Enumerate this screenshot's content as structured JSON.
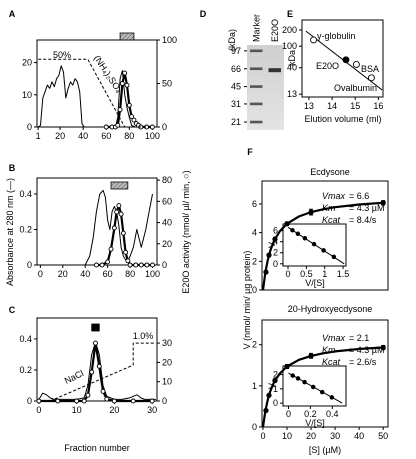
{
  "chart_data": [
    {
      "type": "line",
      "panel": "A",
      "xlim": [
        0,
        104
      ],
      "xticks": [
        1,
        20,
        40,
        60,
        80,
        100
      ],
      "ylim": [
        0,
        27
      ],
      "yticks": [
        0,
        10,
        20
      ],
      "y2lim": [
        0,
        100
      ],
      "y2ticks": [
        0,
        50,
        100
      ],
      "series": [
        {
          "x": [
            1,
            3,
            5,
            7,
            9,
            11,
            13,
            15,
            17,
            19,
            21,
            23,
            25,
            27,
            29,
            31,
            33,
            35,
            37,
            39,
            41,
            43,
            45,
            50,
            55,
            60,
            65,
            68,
            70,
            72,
            74,
            76,
            78,
            80,
            82,
            85,
            90,
            95,
            100
          ],
          "values": [
            0,
            0.5,
            9,
            11,
            13,
            12,
            14,
            12.5,
            15,
            16,
            19,
            17,
            9,
            12,
            14,
            13,
            15,
            14,
            11,
            1,
            0,
            0,
            0,
            0,
            0,
            0,
            0,
            0,
            3,
            15,
            17.5,
            10,
            6,
            3,
            0.5,
            0,
            0,
            0,
            0
          ],
          "color": "#000",
          "line_width": 1
        },
        {
          "x": [
            60,
            65,
            68,
            70,
            72,
            74,
            76,
            78,
            80,
            82,
            84,
            86,
            88,
            90,
            95,
            100
          ],
          "values": [
            0,
            0,
            0,
            2,
            20,
            50,
            62,
            48,
            25,
            12,
            8,
            4,
            2,
            0,
            0,
            0
          ],
          "color": "#000",
          "line_width": 2.2,
          "marker": "open-circle",
          "axis": "y2"
        },
        {
          "name": "(NH₄)₂SO₄",
          "x": [
            1,
            44,
            76,
            100
          ],
          "values": [
            21,
            21,
            0,
            0
          ],
          "color": "#000",
          "line_width": 1,
          "dash": true
        }
      ],
      "pool": [
        72,
        84
      ],
      "pool_fill": "hatch",
      "annotations": [
        "50%"
      ]
    },
    {
      "type": "line",
      "panel": "B",
      "xlim": [
        -3,
        104
      ],
      "xticks": [
        0,
        20,
        40,
        60,
        80,
        100
      ],
      "ylim": [
        0,
        0.49
      ],
      "yticks": [
        0,
        0.2,
        0.4
      ],
      "y2lim": [
        0,
        82
      ],
      "y2ticks": [
        0,
        20,
        40,
        60,
        80
      ],
      "ylabel": "Absorbance at 280 nm (—)",
      "y2label": "E20O activity (nmol/ µl/ min, ○)",
      "series": [
        {
          "x": [
            0,
            10,
            20,
            30,
            40,
            44,
            47,
            50,
            53,
            56,
            58,
            60,
            62,
            64,
            66,
            68,
            70,
            72,
            74,
            76,
            78,
            80,
            83,
            86,
            90,
            94,
            97,
            100
          ],
          "values": [
            0,
            0,
            0,
            0,
            0,
            0.05,
            0.15,
            0.3,
            0.4,
            0.42,
            0.38,
            0.25,
            0.2,
            0.3,
            0.33,
            0.3,
            0.22,
            0.1,
            0.05,
            0.03,
            0.02,
            0.05,
            0.1,
            0.2,
            0.1,
            0.2,
            0.3,
            0.4
          ],
          "color": "#000",
          "line_width": 1
        },
        {
          "x": [
            50,
            55,
            60,
            63,
            66,
            68,
            70,
            72,
            74,
            76,
            78,
            80,
            85,
            90,
            95,
            100
          ],
          "values": [
            0,
            0,
            3,
            15,
            35,
            50,
            56,
            48,
            30,
            12,
            4,
            0,
            0,
            0,
            0,
            0
          ],
          "color": "#000",
          "line_width": 2.2,
          "marker": "open-circle",
          "axis": "y2"
        }
      ],
      "pool": [
        63,
        78
      ],
      "pool_fill": "hatch"
    },
    {
      "type": "line",
      "panel": "C",
      "xlim": [
        -0.5,
        31.3
      ],
      "xticks": [
        0,
        10,
        20,
        30
      ],
      "ylim": [
        0,
        0.535
      ],
      "yticks": [
        0,
        0.2,
        0.4
      ],
      "y2lim": [
        0,
        43
      ],
      "y2ticks": [
        0,
        10,
        20,
        30
      ],
      "xlabel": "Fraction number",
      "series": [
        {
          "x": [
            0,
            1,
            2,
            3,
            4,
            6,
            8,
            10,
            12,
            13,
            14,
            15,
            16,
            17,
            18,
            20,
            22,
            24,
            25,
            26,
            27,
            28,
            30,
            31
          ],
          "values": [
            0.01,
            0.05,
            0.04,
            0.02,
            0.01,
            0.01,
            0.01,
            0.01,
            0.02,
            0.1,
            0.3,
            0.38,
            0.3,
            0.1,
            0.03,
            0.01,
            0.01,
            0.02,
            0.03,
            0.04,
            0.02,
            0.01,
            0.01,
            0.01
          ],
          "color": "#000",
          "line_width": 1
        },
        {
          "x": [
            0,
            5,
            10,
            12,
            13,
            14,
            15,
            16,
            17,
            18,
            20,
            25,
            30
          ],
          "values": [
            0,
            0,
            0,
            0,
            3,
            15,
            30,
            18,
            5,
            1,
            0,
            0,
            0
          ],
          "color": "#000",
          "line_width": 2.2,
          "marker": "open-circle",
          "axis": "y2"
        },
        {
          "name": "NaCl",
          "x": [
            3,
            25,
            25,
            31
          ],
          "values": [
            0,
            18.6,
            30,
            30
          ],
          "color": "#000",
          "line_width": 1,
          "dash": true,
          "axis": "y2"
        }
      ],
      "pool": [
        14,
        16
      ],
      "pool_fill": "#000",
      "annotations": [
        "1.0%"
      ]
    },
    {
      "type": "gel",
      "panel": "D",
      "ylabel": "(kDa)",
      "lanes": [
        "Marker",
        "E20O"
      ],
      "ylog": true,
      "ylim": [
        17.7,
        110
      ],
      "yticks": [
        97,
        66,
        45,
        31,
        21
      ],
      "sample_band": 64
    },
    {
      "type": "scatter",
      "panel": "E",
      "ylog": true,
      "ylim": [
        11.5,
        306
      ],
      "yticks": [
        200,
        100,
        40,
        13
      ],
      "xlim": [
        12.7,
        16.2
      ],
      "xticks": [
        13,
        14,
        15,
        16
      ],
      "ylabel": "kDa",
      "xlabel": "Elution volume (ml)",
      "series": [
        {
          "x": [
            12.87,
            16.16
          ],
          "values": [
            191,
            15.5
          ],
          "color": "#000",
          "line_width": 1
        },
        {
          "name": "γ-globulin",
          "x": [
            13.2
          ],
          "values": [
            131
          ],
          "color": "#000",
          "marker": "open-circle",
          "line": false
        },
        {
          "name": "E20O",
          "x": [
            14.6
          ],
          "values": [
            56
          ],
          "color": "#000",
          "marker": "filled-circle",
          "line": false
        },
        {
          "name": "BSA",
          "x": [
            15.05
          ],
          "values": [
            46
          ],
          "color": "#000",
          "marker": "open-circle",
          "line": false
        },
        {
          "name": "Ovalbumin",
          "x": [
            15.7
          ],
          "values": [
            26
          ],
          "color": "#000",
          "marker": "open-circle",
          "line": false
        }
      ]
    },
    {
      "type": "scatter",
      "panel": "F",
      "title": "Ecdysone",
      "xlim": [
        -0.4,
        52
      ],
      "ylim": [
        0,
        7.6
      ],
      "yticks": [
        0,
        2,
        4,
        6
      ],
      "series": [
        {
          "x": [
            0,
            1,
            2,
            3,
            4,
            5,
            7,
            10,
            15,
            20,
            25,
            30,
            40,
            50
          ],
          "values": [
            0,
            1.25,
            2.1,
            2.72,
            3.19,
            3.55,
            4.09,
            4.62,
            5.13,
            5.43,
            5.63,
            5.77,
            5.96,
            6.08
          ],
          "color": "#000",
          "line_width": 2.2
        },
        {
          "x": [
            1.25,
            2.5,
            5,
            10,
            20,
            50
          ],
          "values": [
            1.25,
            2.43,
            3.55,
            4.62,
            5.43,
            6.08
          ],
          "errors": [
            0.05,
            0.08,
            0.1,
            0.12,
            0.2,
            0.15
          ],
          "color": "#000",
          "marker": "filled-circle",
          "line": false
        }
      ],
      "kinetics": [
        {
          "name": "Vmax",
          "text": "= 6.6"
        },
        {
          "name": "Km",
          "text": "= 4.3 µM"
        },
        {
          "name": "Kcat",
          "text": "= 8.4/s"
        }
      ]
    },
    {
      "type": "scatter",
      "xlim": [
        -0.136,
        1.58
      ],
      "xticks": [
        0,
        0.5,
        1,
        1.5
      ],
      "ylim": [
        -0.4,
        7.2
      ],
      "yticks": [
        0,
        2,
        4,
        6
      ],
      "ylabel": "V",
      "xlabel": "V/[S]",
      "series": [
        {
          "x": [
            0,
            1.53
          ],
          "values": [
            6.6,
            0
          ],
          "color": "#000",
          "line_width": 1
        },
        {
          "x": [
            0.12,
            0.27,
            0.46,
            0.71,
            0.97,
            1.25
          ],
          "values": [
            6.08,
            5.43,
            4.62,
            3.55,
            2.43,
            1.25
          ],
          "color": "#000",
          "marker": "filled-circle",
          "line": false
        }
      ]
    },
    {
      "type": "scatter",
      "title": "20-Hydroxyecdysone",
      "xlim": [
        -0.4,
        52
      ],
      "xticks": [
        0,
        10,
        20,
        30,
        40,
        50
      ],
      "ylim": [
        0,
        2.6
      ],
      "yticks": [
        0,
        1,
        2
      ],
      "xlabel": "[S]  (µM)",
      "ylabel": "V (nmol/ min/ µg protein)",
      "series": [
        {
          "x": [
            0,
            1,
            2,
            3,
            4,
            5,
            7,
            10,
            15,
            20,
            25,
            30,
            40,
            50
          ],
          "values": [
            0,
            0.396,
            0.667,
            0.863,
            1.012,
            1.129,
            1.301,
            1.469,
            1.632,
            1.728,
            1.792,
            1.837,
            1.896,
            1.934
          ],
          "color": "#000",
          "line_width": 2.2
        },
        {
          "x": [
            1.25,
            2.5,
            5,
            10,
            20,
            50
          ],
          "values": [
            0.4,
            0.77,
            1.13,
            1.47,
            1.73,
            1.93
          ],
          "errors": [
            0.02,
            0.03,
            0.04,
            0.05,
            0.06,
            0.05
          ],
          "color": "#000",
          "marker": "filled-circle",
          "line": false
        }
      ],
      "kinetics": [
        {
          "name": "Vmax",
          "text": "= 2.1"
        },
        {
          "name": "Km",
          "text": "= 4.3 µM"
        },
        {
          "name": "Kcat",
          "text": "= 2.6/s"
        }
      ]
    },
    {
      "type": "scatter",
      "xlim": [
        -0.05,
        0.525
      ],
      "xticks": [
        0,
        0.2,
        0.4
      ],
      "ylim": [
        -0.2,
        2.6
      ],
      "yticks": [
        0,
        1,
        2
      ],
      "ylabel": "V",
      "xlabel": "V/[S]",
      "series": [
        {
          "x": [
            0,
            0.49
          ],
          "values": [
            2.1,
            0
          ],
          "color": "#000",
          "line_width": 1
        },
        {
          "x": [
            0.039,
            0.087,
            0.147,
            0.226,
            0.308,
            0.396
          ],
          "values": [
            1.93,
            1.73,
            1.47,
            1.13,
            0.77,
            0.4
          ],
          "color": "#000",
          "marker": "filled-circle",
          "line": false
        }
      ]
    }
  ]
}
